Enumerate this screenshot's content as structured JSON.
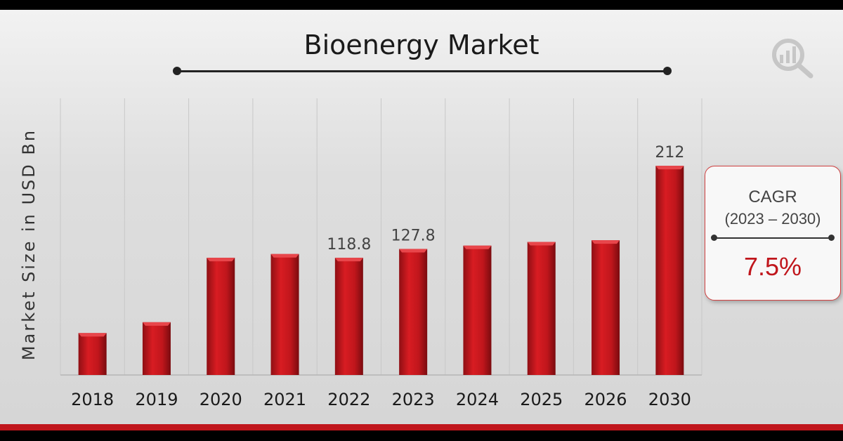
{
  "chart_data": {
    "type": "bar",
    "title": "Bioenergy Market",
    "xlabel": "",
    "ylabel": "Market Size in USD Bn",
    "categories": [
      "2018",
      "2019",
      "2020",
      "2021",
      "2022",
      "2023",
      "2024",
      "2025",
      "2026",
      "2030"
    ],
    "values": [
      42.5,
      53.5,
      118.8,
      122.6,
      118.8,
      127.8,
      131.1,
      134.9,
      136.6,
      212
    ],
    "data_labels": {
      "2022": "118.8",
      "2023": "127.8",
      "2030": "212"
    },
    "ylim": [
      0,
      230
    ],
    "grid": "vertical",
    "bar_color": "#c0161c"
  },
  "cagr": {
    "label": "CAGR",
    "period": "(2023 – 2030)",
    "value": "7.5%"
  },
  "colors": {
    "accent": "#c0161c",
    "text": "#1a1a1a"
  },
  "logo": {
    "icon": "market-research-logo-icon"
  }
}
